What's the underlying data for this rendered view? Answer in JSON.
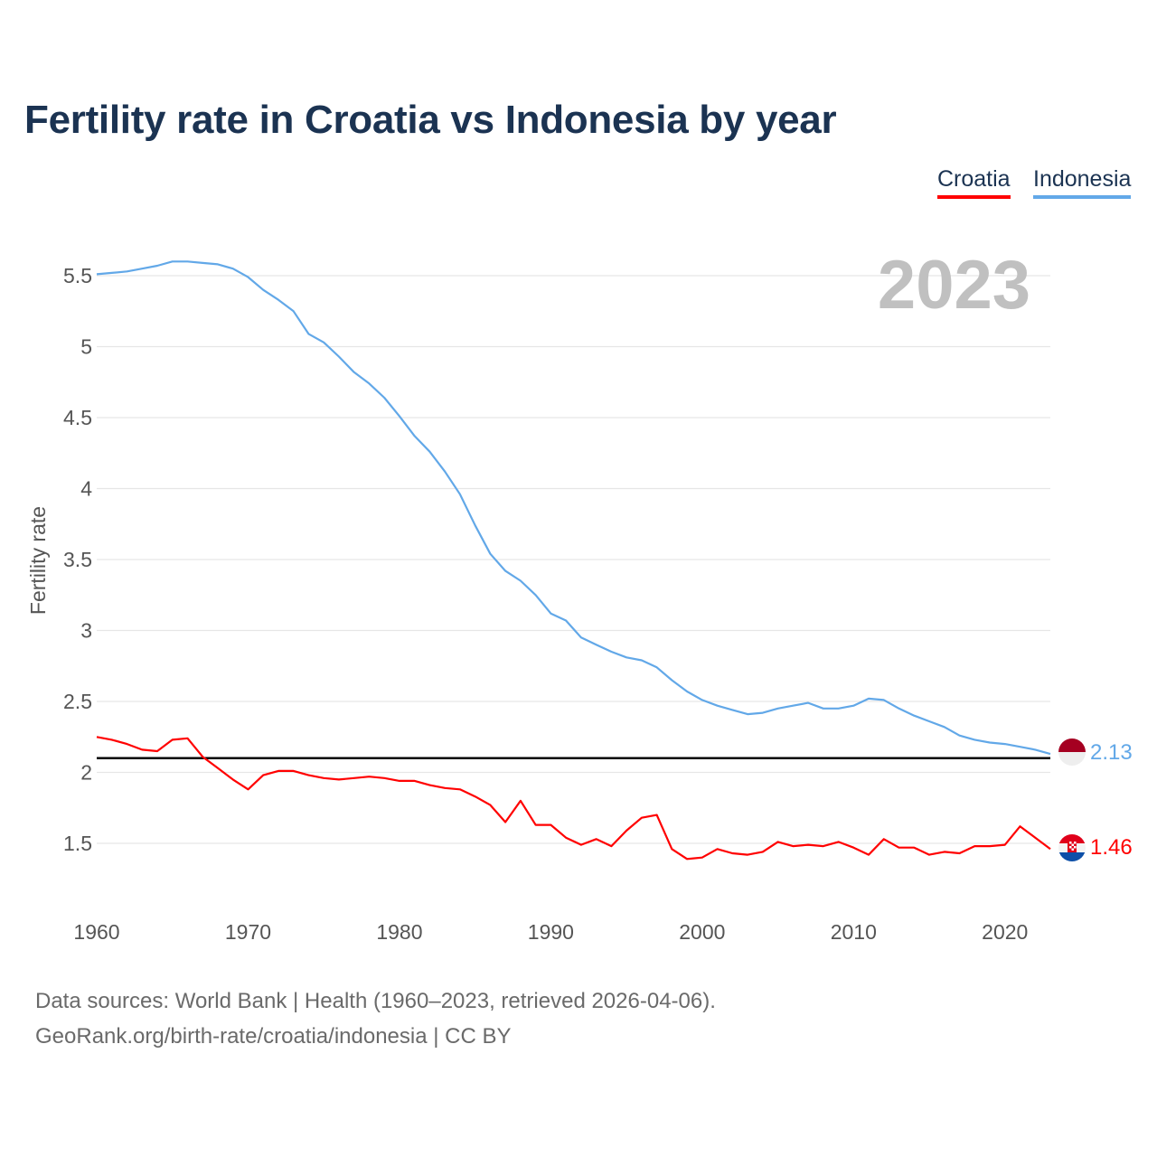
{
  "title": "Fertility rate in Croatia vs Indonesia by year",
  "legend": [
    {
      "name": "Croatia",
      "color": "#ff0000"
    },
    {
      "name": "Indonesia",
      "color": "#62a8e8"
    }
  ],
  "year_label": "2023",
  "source_line1": "Data sources: World Bank | Health (1960–2023, retrieved 2026-04-06).",
  "source_line2": "GeoRank.org/birth-rate/croatia/indonesia | CC BY",
  "chart_data": {
    "type": "line",
    "title": "Fertility rate in Croatia vs Indonesia by year",
    "xlabel": "",
    "ylabel": "Fertility rate",
    "xlim": [
      1960,
      2023
    ],
    "ylim": [
      1.1,
      5.8
    ],
    "x_ticks": [
      1960,
      1970,
      1980,
      1990,
      2000,
      2010,
      2020
    ],
    "y_ticks": [
      1.5,
      2,
      2.5,
      3,
      3.5,
      4,
      4.5,
      5,
      5.5
    ],
    "y_tick_labels": [
      "1.5",
      "2",
      "2.5",
      "3",
      "3.5",
      "4",
      "4.5",
      "5",
      "5.5"
    ],
    "grid": "horizontal",
    "legend_position": "top-right",
    "reference_line": {
      "value": 2.1,
      "color": "#000000"
    },
    "x_start": 1960,
    "series": [
      {
        "name": "Indonesia",
        "color": "#62a8e8",
        "end_label": "2.13",
        "flag": "indonesia-flag",
        "values": [
          5.51,
          5.52,
          5.53,
          5.55,
          5.57,
          5.6,
          5.6,
          5.59,
          5.58,
          5.55,
          5.49,
          5.4,
          5.33,
          5.25,
          5.09,
          5.03,
          4.93,
          4.82,
          4.74,
          4.64,
          4.51,
          4.37,
          4.26,
          4.12,
          3.96,
          3.74,
          3.54,
          3.42,
          3.35,
          3.25,
          3.12,
          3.07,
          2.95,
          2.9,
          2.85,
          2.81,
          2.79,
          2.74,
          2.65,
          2.57,
          2.51,
          2.47,
          2.44,
          2.41,
          2.42,
          2.45,
          2.47,
          2.49,
          2.45,
          2.45,
          2.47,
          2.52,
          2.51,
          2.45,
          2.4,
          2.36,
          2.32,
          2.26,
          2.23,
          2.21,
          2.2,
          2.18,
          2.16,
          2.13
        ]
      },
      {
        "name": "Croatia",
        "color": "#ff0000",
        "end_label": "1.46",
        "flag": "croatia-flag",
        "values": [
          2.25,
          2.23,
          2.2,
          2.16,
          2.15,
          2.23,
          2.24,
          2.11,
          2.03,
          1.95,
          1.88,
          1.98,
          2.01,
          2.01,
          1.98,
          1.96,
          1.95,
          1.96,
          1.97,
          1.96,
          1.94,
          1.94,
          1.91,
          1.89,
          1.88,
          1.83,
          1.77,
          1.65,
          1.8,
          1.63,
          1.63,
          1.54,
          1.49,
          1.53,
          1.48,
          1.59,
          1.68,
          1.7,
          1.46,
          1.39,
          1.4,
          1.46,
          1.43,
          1.42,
          1.44,
          1.51,
          1.48,
          1.49,
          1.48,
          1.51,
          1.47,
          1.42,
          1.53,
          1.47,
          1.47,
          1.42,
          1.44,
          1.43,
          1.48,
          1.48,
          1.49,
          1.62,
          1.54,
          1.46
        ]
      }
    ]
  }
}
